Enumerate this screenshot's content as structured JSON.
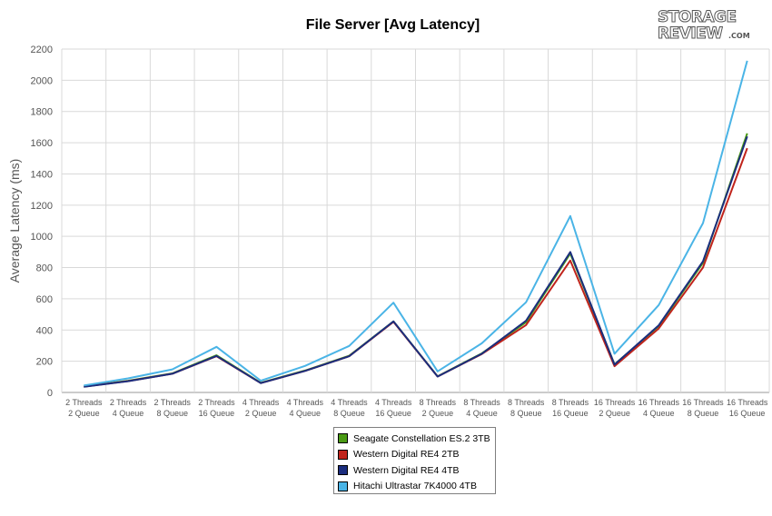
{
  "chart_data": {
    "type": "line",
    "title": "File Server [Avg Latency]",
    "xlabel": "",
    "ylabel": "Average Latency (ms)",
    "ylim": [
      0,
      2200
    ],
    "yticks": [
      0,
      200,
      400,
      600,
      800,
      1000,
      1200,
      1400,
      1600,
      1800,
      2000,
      2200
    ],
    "grid": true,
    "legend_position": "bottom",
    "categories": [
      [
        "2 Threads",
        "2 Queue"
      ],
      [
        "2 Threads",
        "4 Queue"
      ],
      [
        "2 Threads",
        "8 Queue"
      ],
      [
        "2 Threads",
        "16 Queue"
      ],
      [
        "4 Threads",
        "2 Queue"
      ],
      [
        "4 Threads",
        "4 Queue"
      ],
      [
        "4 Threads",
        "8 Queue"
      ],
      [
        "4 Threads",
        "16 Queue"
      ],
      [
        "8 Threads",
        "2 Queue"
      ],
      [
        "8 Threads",
        "4 Queue"
      ],
      [
        "8 Threads",
        "8 Queue"
      ],
      [
        "8 Threads",
        "16 Queue"
      ],
      [
        "16 Threads",
        "2 Queue"
      ],
      [
        "16 Threads",
        "4 Queue"
      ],
      [
        "16 Threads",
        "8 Queue"
      ],
      [
        "16 Threads",
        "16 Queue"
      ]
    ],
    "series": [
      {
        "name": "Seagate Constellation ES.2 3TB",
        "color": "#4a9a14",
        "values": [
          38,
          75,
          122,
          238,
          62,
          140,
          235,
          455,
          103,
          250,
          450,
          890,
          180,
          425,
          830,
          1660
        ]
      },
      {
        "name": "Western Digital RE4 2TB",
        "color": "#c0241c",
        "values": [
          37,
          73,
          120,
          232,
          60,
          138,
          232,
          452,
          102,
          246,
          432,
          845,
          168,
          410,
          800,
          1565
        ]
      },
      {
        "name": "Western Digital RE4 4TB",
        "color": "#1b2d7e",
        "values": [
          36,
          72,
          120,
          234,
          60,
          138,
          232,
          455,
          102,
          248,
          460,
          900,
          178,
          430,
          840,
          1640
        ]
      },
      {
        "name": "Hitachi Ultrastar 7K4000 4TB",
        "color": "#4ab4e6",
        "values": [
          45,
          90,
          148,
          292,
          75,
          170,
          298,
          575,
          135,
          315,
          578,
          1130,
          248,
          560,
          1085,
          2125
        ]
      }
    ]
  },
  "logo": {
    "line1": "STORAGE",
    "line2": "REVIEW",
    "suffix": ".COM"
  }
}
